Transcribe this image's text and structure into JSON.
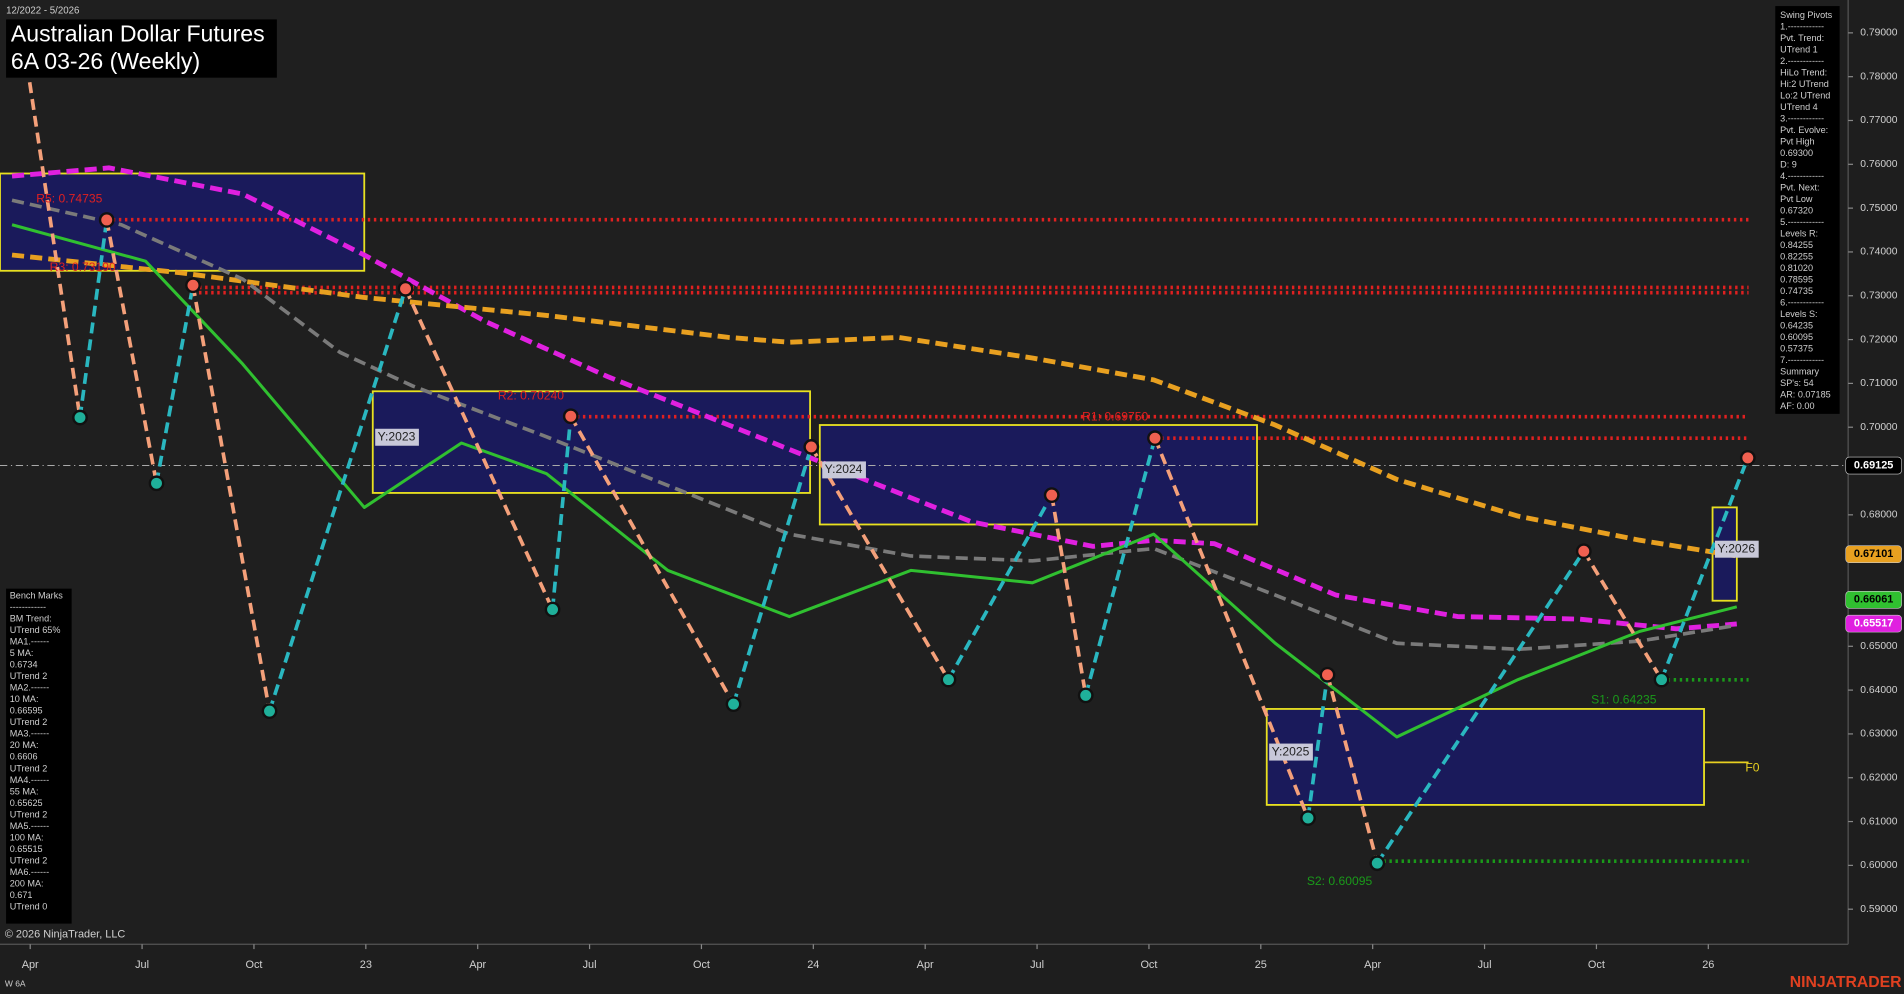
{
  "header": {
    "date_range": "12/2022 - 5/2026",
    "title": "Australian Dollar Futures",
    "subtitle": "6A 03-26 (Weekly)"
  },
  "chart_data": {
    "type": "line",
    "xlim": [
      -0.27,
      16.25
    ],
    "xticks": [
      {
        "value": 0,
        "label": "Apr"
      },
      {
        "value": 1,
        "label": "Jul"
      },
      {
        "value": 2,
        "label": "Oct"
      },
      {
        "value": 3,
        "label": "23"
      },
      {
        "value": 4,
        "label": "Apr"
      },
      {
        "value": 5,
        "label": "Jul"
      },
      {
        "value": 6,
        "label": "Oct"
      },
      {
        "value": 7,
        "label": "24"
      },
      {
        "value": 8,
        "label": "Apr"
      },
      {
        "value": 9,
        "label": "Jul"
      },
      {
        "value": 10,
        "label": "Oct"
      },
      {
        "value": 11,
        "label": "25"
      },
      {
        "value": 12,
        "label": "Apr"
      },
      {
        "value": 13,
        "label": "Jul"
      },
      {
        "value": 14,
        "label": "Oct"
      },
      {
        "value": 15,
        "label": "26"
      }
    ],
    "ylim": [
      0.582,
      0.7975
    ],
    "yticks": [
      {
        "value": 0.59,
        "label": "0.59000"
      },
      {
        "value": 0.6,
        "label": "0.60000"
      },
      {
        "value": 0.61,
        "label": "0.61000"
      },
      {
        "value": 0.62,
        "label": "0.62000"
      },
      {
        "value": 0.63,
        "label": "0.63000"
      },
      {
        "value": 0.64,
        "label": "0.64000"
      },
      {
        "value": 0.65,
        "label": "0.65000"
      },
      {
        "value": 0.66,
        "label": "0.66000"
      },
      {
        "value": 0.67,
        "label": "0.67000"
      },
      {
        "value": 0.68,
        "label": "0.68000"
      },
      {
        "value": 0.69,
        "label": "0.69000"
      },
      {
        "value": 0.7,
        "label": "0.70000"
      },
      {
        "value": 0.71,
        "label": "0.71000"
      },
      {
        "value": 0.72,
        "label": "0.72000"
      },
      {
        "value": 0.73,
        "label": "0.73000"
      },
      {
        "value": 0.74,
        "label": "0.74000"
      },
      {
        "value": 0.75,
        "label": "0.75000"
      },
      {
        "value": 0.76,
        "label": "0.76000"
      },
      {
        "value": 0.77,
        "label": "0.77000"
      },
      {
        "value": 0.78,
        "label": "0.78000"
      },
      {
        "value": 0.79,
        "label": "0.79000"
      }
    ],
    "series": [
      {
        "color": "#e020e0",
        "dash": true,
        "width": 4,
        "x": [
          -0.163,
          0.706,
          1.9,
          2.986,
          4.072,
          5.157,
          6.243,
          7.329,
          8.415,
          9.501,
          10.043,
          10.586,
          11.672,
          12.758,
          13.844,
          14.713,
          15.255
        ],
        "values": [
          0.7573,
          0.7592,
          0.7532,
          0.7393,
          0.7241,
          0.7116,
          0.7005,
          0.6894,
          0.6784,
          0.6728,
          0.6742,
          0.6734,
          0.6617,
          0.6568,
          0.6562,
          0.654,
          0.6551
        ]
      },
      {
        "color": "#e8a020",
        "dash": true,
        "width": 4,
        "x": [
          -0.163,
          1.357,
          2.986,
          4.615,
          6.243,
          6.786,
          7.763,
          8.958,
          10.043,
          11.129,
          12.215,
          13.301,
          14.387,
          15.255
        ],
        "values": [
          0.7393,
          0.7352,
          0.7296,
          0.7255,
          0.7205,
          0.7194,
          0.7205,
          0.7158,
          0.7108,
          0.7005,
          0.6881,
          0.6797,
          0.6742,
          0.6706
        ]
      },
      {
        "color": "#7a7a7a",
        "dash": true,
        "width": 3,
        "x": [
          -0.163,
          0.814,
          1.9,
          2.769,
          3.42,
          4.615,
          5.7,
          6.786,
          7.872,
          8.958,
          10.043,
          11.129,
          12.215,
          13.301,
          14.387,
          15.255
        ],
        "values": [
          0.7518,
          0.7462,
          0.7338,
          0.7171,
          0.7094,
          0.6978,
          0.6867,
          0.6756,
          0.6706,
          0.6695,
          0.6723,
          0.6617,
          0.6507,
          0.6493,
          0.6512,
          0.6548
        ]
      },
      {
        "color": "#30c030",
        "dash": false,
        "width": 2.5,
        "x": [
          -0.163,
          1.031,
          1.9,
          2.986,
          3.855,
          4.615,
          5.7,
          6.786,
          7.872,
          8.958,
          10.043,
          11.129,
          12.215,
          13.301,
          14.387,
          15.255
        ],
        "values": [
          0.7462,
          0.7379,
          0.7144,
          0.6817,
          0.6964,
          0.6894,
          0.6673,
          0.6568,
          0.6673,
          0.6645,
          0.6756,
          0.6507,
          0.6293,
          0.6424,
          0.6534,
          0.659
        ]
      }
    ],
    "pivots": {
      "up_color": "#2ab7c0",
      "down_color": "#f4a07a",
      "high_color": "#f06050",
      "low_color": "#1fb09a",
      "x": [
        -0.05,
        0.445,
        0.684,
        1.129,
        1.455,
        2.139,
        3.355,
        4.669,
        4.832,
        6.287,
        6.982,
        8.208,
        9.131,
        9.435,
        10.054,
        11.422,
        11.596,
        12.041,
        13.887,
        14.582,
        15.353
      ],
      "values": [
        0.7864,
        0.7022,
        0.7473,
        0.6872,
        0.7324,
        0.6352,
        0.7316,
        0.6584,
        0.7025,
        0.6368,
        0.6955,
        0.6424,
        0.6845,
        0.6388,
        0.6975,
        0.6108,
        0.6435,
        0.6005,
        0.6717,
        0.6424,
        0.693
      ]
    },
    "levels": [
      {
        "label": "R5: 0.74735",
        "value": 0.74735,
        "from": 0.684,
        "to": 15.36,
        "color": "#e02020"
      },
      {
        "label": "R3: 0.73190",
        "value": 0.7319,
        "from": 1.455,
        "to": 15.36,
        "color": "#e02020"
      },
      {
        "value": 0.7307,
        "from": 1.455,
        "to": 15.36,
        "color": "#e02020"
      },
      {
        "label": "R2: 0.70240",
        "value": 0.7024,
        "from": 4.832,
        "to": 15.36,
        "color": "#e02020"
      },
      {
        "label": "R1: 0.69750",
        "value": 0.6975,
        "from": 10.054,
        "to": 15.36,
        "color": "#e02020"
      },
      {
        "label": "S1: 0.64235",
        "value": 0.64235,
        "from": 14.582,
        "to": 15.36,
        "color": "#1a9a1a"
      },
      {
        "label": "S2: 0.60095",
        "value": 0.60095,
        "from": 12.041,
        "to": 15.36,
        "color": "#1a9a1a"
      },
      {
        "label": "F0",
        "value": 0.6235,
        "from": 14.962,
        "to": 15.36,
        "color": "#e8d020",
        "solid": true
      }
    ],
    "zones": [
      {
        "x": [
          -0.27,
          2.986
        ],
        "range": [
          0.7357,
          0.7579
        ]
      },
      {
        "label": "Y:2023",
        "x": [
          3.062,
          6.971
        ],
        "range": [
          0.685,
          0.7082
        ]
      },
      {
        "label": "Y:2024",
        "x": [
          7.058,
          10.966
        ],
        "range": [
          0.6778,
          0.7005
        ]
      },
      {
        "label": "Y:2025",
        "x": [
          11.053,
          14.962
        ],
        "range": [
          0.6138,
          0.6357
        ]
      },
      {
        "label": "Y:2026",
        "x": [
          15.038,
          15.255
        ],
        "range": [
          0.6604,
          0.6817
        ]
      }
    ],
    "price_labels": [
      {
        "value": 0.69125,
        "color": "#000000",
        "text_color": "#ffffff",
        "line": true
      },
      {
        "value": 0.67101,
        "color": "#e8a020",
        "text_color": "#000000"
      },
      {
        "value": 0.66061,
        "color": "#30c030",
        "text_color": "#000000"
      },
      {
        "value": 0.65517,
        "color": "#e020e0",
        "text_color": "#ffffff"
      }
    ]
  },
  "swing_pivots": [
    "Swing Pivots",
    "1.------------",
    "Pvt. Trend:",
    "UTrend 1",
    "2.------------",
    "HiLo Trend:",
    "Hi:2 UTrend",
    "Lo:2 UTrend",
    "UTrend 4",
    "3.------------",
    "Pvt. Evolve:",
    "Pvt High",
    "0.69300",
    "D: 9",
    "4.------------",
    "Pvt. Next:",
    "Pvt Low",
    "0.67320",
    "5.------------",
    "Levels R:",
    "0.84255",
    "0.82255",
    "0.81020",
    "0.78595",
    "0.74735",
    "6.------------",
    "Levels S:",
    "0.64235",
    "0.60095",
    "0.57375",
    "7.------------",
    "Summary",
    "SP's: 54",
    "AR: 0.07185",
    "AF: 0.00"
  ],
  "bench_marks": [
    "Bench Marks",
    "------------",
    "BM Trend:",
    "UTrend 65%",
    "MA1.------",
    "5 MA:",
    "0.6734",
    "UTrend 2",
    "MA2.------",
    "10 MA:",
    "0.66595",
    "UTrend 2",
    "MA3.------",
    "20 MA:",
    "0.6606",
    "UTrend 2",
    "MA4.------",
    "55 MA:",
    "0.65625",
    "UTrend 2",
    "MA5.------",
    "100 MA:",
    "0.65515",
    "UTrend 2",
    "MA6.------",
    "200 MA:",
    "0.671",
    "UTrend 0"
  ],
  "footer": {
    "copyright": "© 2026 NinjaTrader, LLC",
    "brand": "NINJATRADER",
    "symbol": "W 6A"
  }
}
